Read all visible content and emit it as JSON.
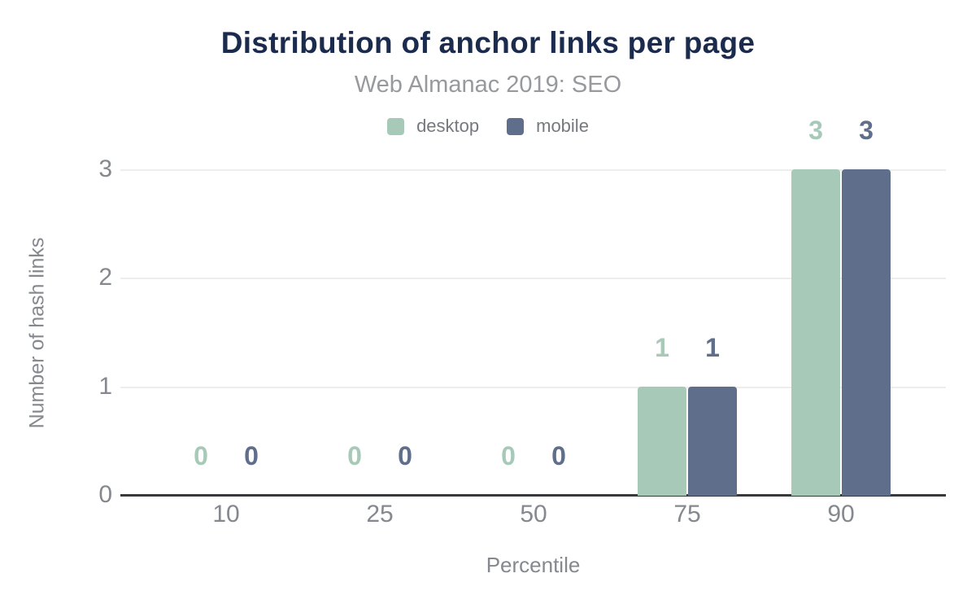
{
  "chart_data": {
    "type": "bar",
    "title": "Distribution of anchor links per page",
    "subtitle": "Web Almanac 2019: SEO",
    "xlabel": "Percentile",
    "ylabel": "Number of hash links",
    "categories": [
      "10",
      "25",
      "50",
      "75",
      "90"
    ],
    "series": [
      {
        "name": "desktop",
        "color": "#a7c9b8",
        "values": [
          0,
          0,
          0,
          1,
          3
        ]
      },
      {
        "name": "mobile",
        "color": "#5f6e8a",
        "values": [
          0,
          0,
          0,
          1,
          3
        ]
      }
    ],
    "ylim": [
      0,
      3
    ],
    "yticks": [
      0,
      1,
      2,
      3
    ],
    "grid": true,
    "legend_position": "top",
    "annotations": "values shown above each bar"
  },
  "palette": {
    "title_color": "#1b2b4d",
    "subtitle_color": "#97999d",
    "legend_text_color": "#75787e",
    "tick_label_color": "#85888e",
    "axis_title_color": "#85888e",
    "gridline_color": "#ededed",
    "baseline_color": "#37393c",
    "background": "#ffffff"
  }
}
